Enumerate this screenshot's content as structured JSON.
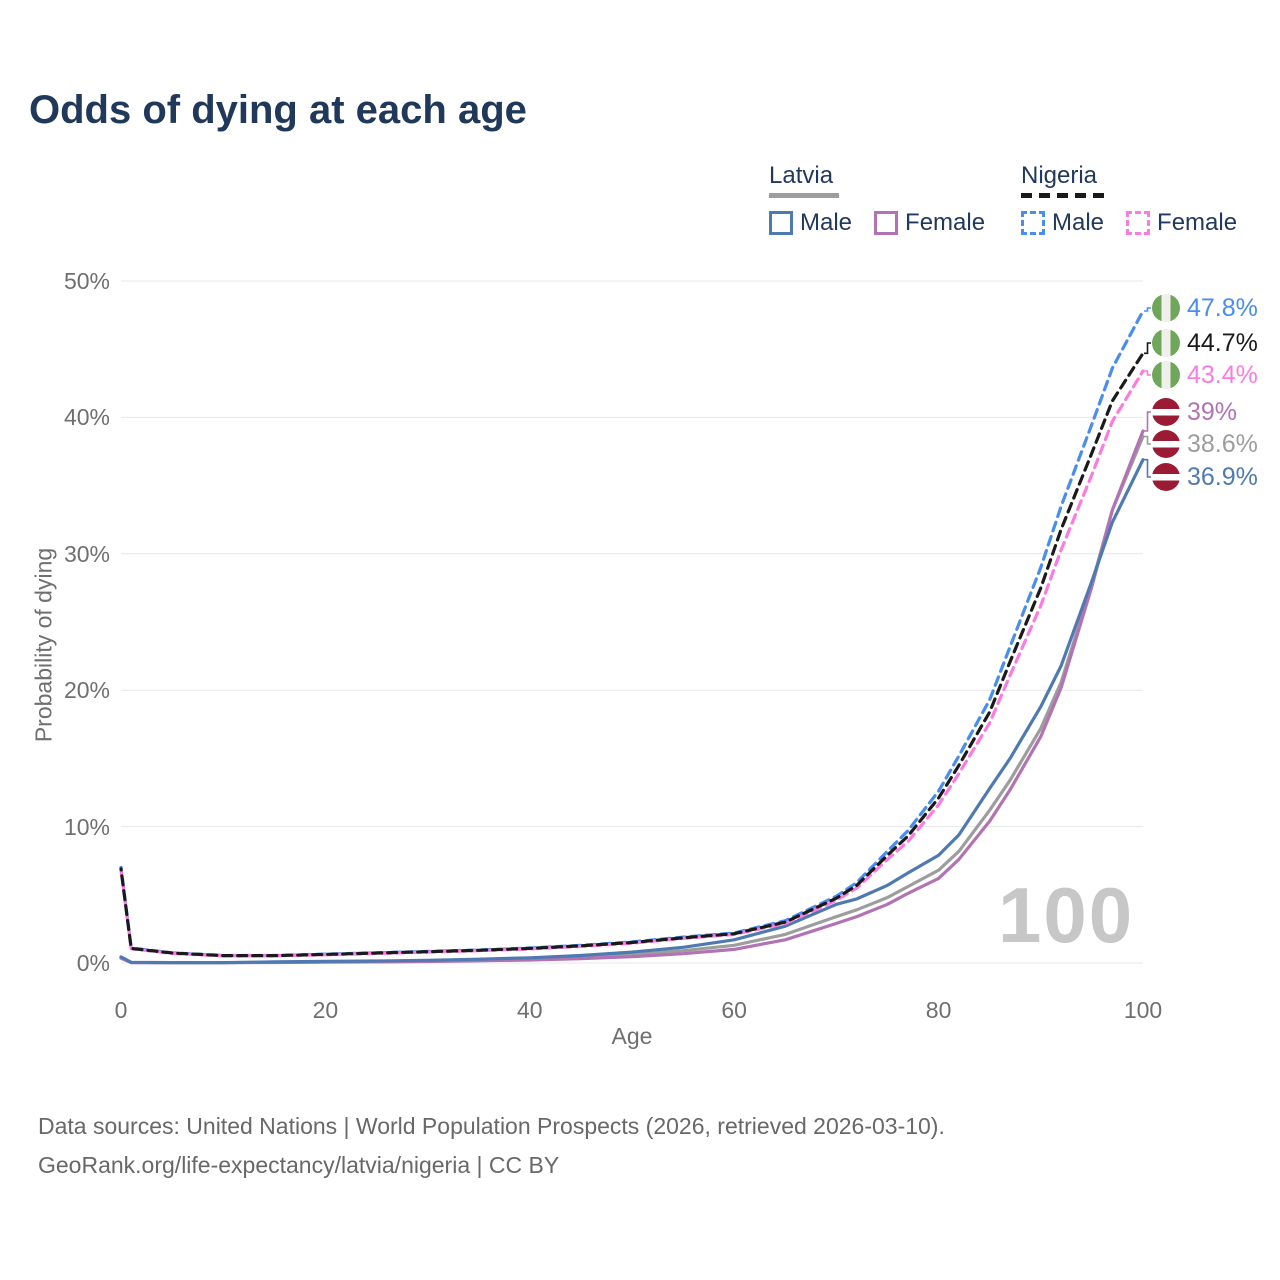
{
  "title": "Odds of dying at each age",
  "legend": {
    "groups": [
      {
        "id": "latvia",
        "label": "Latvia",
        "key_series": "latvia-total",
        "items": [
          {
            "series": "latvia-male",
            "label": "Male"
          },
          {
            "series": "latvia-female",
            "label": "Female"
          }
        ]
      },
      {
        "id": "nigeria",
        "label": "Nigeria",
        "key_series": "nigeria-total",
        "items": [
          {
            "series": "nigeria-male",
            "label": "Male"
          },
          {
            "series": "nigeria-female",
            "label": "Female"
          }
        ]
      }
    ]
  },
  "chart_data": {
    "type": "line",
    "title": "Odds of dying at each age",
    "xlabel": "Age",
    "ylabel": "Probability of dying",
    "xlim": [
      0,
      100
    ],
    "ylim": [
      0,
      50
    ],
    "grid": true,
    "legend_position": "top-right",
    "watermark": "100",
    "x_ticks": [
      {
        "label": "0",
        "v": 0
      },
      {
        "label": "20",
        "v": 20
      },
      {
        "label": "40",
        "v": 40
      },
      {
        "label": "60",
        "v": 60
      },
      {
        "label": "80",
        "v": 80
      },
      {
        "label": "100",
        "v": 100
      }
    ],
    "y_ticks": [
      {
        "label": "0%",
        "v": 0
      },
      {
        "label": "10%",
        "v": 10
      },
      {
        "label": "20%",
        "v": 20
      },
      {
        "label": "30%",
        "v": 30
      },
      {
        "label": "40%",
        "v": 40
      },
      {
        "label": "50%",
        "v": 50
      }
    ],
    "ages": [
      0,
      1,
      5,
      10,
      15,
      20,
      25,
      30,
      35,
      40,
      45,
      50,
      55,
      60,
      65,
      70,
      72,
      75,
      77,
      80,
      82,
      85,
      87,
      90,
      92,
      95,
      97,
      100
    ],
    "series": [
      {
        "id": "latvia-total",
        "name": "Latvia (both sexes)",
        "color": "#9d9d9d",
        "dash": false,
        "values": [
          0.4,
          0.04,
          0.025,
          0.025,
          0.06,
          0.09,
          0.12,
          0.16,
          0.22,
          0.3,
          0.43,
          0.62,
          0.9,
          1.3,
          2.1,
          3.4,
          3.9,
          4.8,
          5.6,
          6.8,
          8.2,
          11.2,
          13.4,
          17.2,
          20.6,
          27.8,
          33.2,
          38.6
        ],
        "end_value": "38.6%"
      },
      {
        "id": "latvia-female",
        "name": "Latvia Female",
        "color": "#b173b3",
        "dash": false,
        "values": [
          0.35,
          0.03,
          0.02,
          0.02,
          0.04,
          0.06,
          0.08,
          0.11,
          0.16,
          0.22,
          0.32,
          0.46,
          0.68,
          1.0,
          1.7,
          2.9,
          3.4,
          4.3,
          5.1,
          6.2,
          7.6,
          10.4,
          12.7,
          16.6,
          20.2,
          27.6,
          33.2,
          39.0
        ],
        "end_value": "39%"
      },
      {
        "id": "latvia-male",
        "name": "Latvia Male",
        "color": "#4f7ab1",
        "dash": false,
        "values": [
          0.45,
          0.05,
          0.03,
          0.03,
          0.08,
          0.12,
          0.15,
          0.2,
          0.28,
          0.38,
          0.55,
          0.8,
          1.15,
          1.7,
          2.7,
          4.3,
          4.7,
          5.7,
          6.6,
          7.9,
          9.4,
          12.8,
          15.0,
          18.8,
          21.8,
          28.0,
          32.3,
          36.9
        ],
        "end_value": "36.9%"
      },
      {
        "id": "nigeria-male",
        "name": "Nigeria Male",
        "color": "#4a8df0",
        "dash": true,
        "values": [
          7.0,
          1.1,
          0.75,
          0.55,
          0.55,
          0.65,
          0.75,
          0.85,
          0.95,
          1.1,
          1.3,
          1.55,
          1.9,
          2.2,
          3.1,
          4.9,
          5.9,
          8.2,
          9.7,
          12.6,
          15.2,
          19.3,
          23.2,
          29.0,
          33.5,
          39.5,
          43.6,
          47.8
        ],
        "end_value": "47.8%"
      },
      {
        "id": "nigeria-female",
        "name": "Nigeria Female",
        "color": "#fb7ce0",
        "dash": true,
        "values": [
          6.8,
          1.05,
          0.7,
          0.52,
          0.52,
          0.6,
          0.7,
          0.8,
          0.9,
          1.03,
          1.22,
          1.45,
          1.8,
          2.1,
          2.9,
          4.6,
          5.5,
          7.6,
          8.9,
          11.6,
          13.9,
          17.6,
          21.1,
          26.2,
          30.3,
          35.8,
          39.7,
          43.4
        ],
        "end_value": "43.4%"
      },
      {
        "id": "nigeria-total",
        "name": "Nigeria (both sexes)",
        "color": "#1a1a1a",
        "dash": true,
        "values": [
          6.9,
          1.07,
          0.73,
          0.54,
          0.54,
          0.63,
          0.73,
          0.83,
          0.93,
          1.07,
          1.26,
          1.5,
          1.85,
          2.15,
          3.0,
          4.75,
          5.7,
          7.9,
          9.3,
          12.1,
          14.5,
          18.4,
          22.1,
          27.5,
          31.8,
          37.4,
          41.2,
          44.7
        ],
        "end_value": "44.7%"
      }
    ]
  },
  "end_labels": [
    {
      "text": "47.8%",
      "flag": "nigeria",
      "series": "nigeria-male"
    },
    {
      "text": "44.7%",
      "flag": "nigeria",
      "series": "nigeria-total"
    },
    {
      "text": "43.4%",
      "flag": "nigeria",
      "series": "nigeria-female"
    },
    {
      "text": "39%",
      "flag": "latvia",
      "series": "latvia-female"
    },
    {
      "text": "38.6%",
      "flag": "latvia",
      "series": "latvia-total"
    },
    {
      "text": "36.9%",
      "flag": "latvia",
      "series": "latvia-male"
    }
  ],
  "footer": {
    "line1": "Data sources: United Nations | World Population Prospects (2026, retrieved 2026-03-10).",
    "line2": "GeoRank.org/life-expectancy/latvia/nigeria | CC BY"
  },
  "colors": {
    "title_navy": "#20395a",
    "grid": "#e7e7e7",
    "axis_text": "#6f6f6f",
    "watermark": "#c7c7c7",
    "latvia_flag_red": "#9a1b33",
    "nigeria_flag_green": "#6fa75a"
  }
}
